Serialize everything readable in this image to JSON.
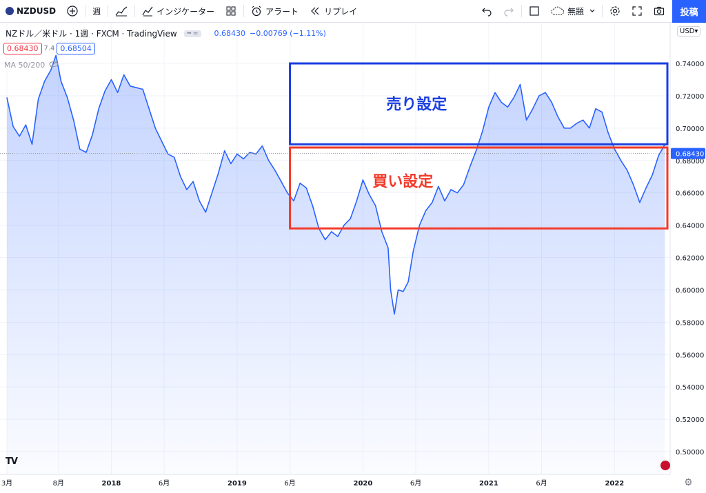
{
  "toolbar": {
    "symbol": "NZDUSD",
    "interval": "週",
    "indicators_label": "インジケーター",
    "alert_label": "アラート",
    "replay_label": "リプレイ",
    "layout_name": "無題",
    "publish_label": "投稿"
  },
  "legend": {
    "title": "NZドル／米ドル · 1週 · FXCM · TradingView",
    "last": "0.68430",
    "change": "−0.00769 (−1.11%)",
    "bid": "0.68430",
    "spread": "7.4",
    "ask": "0.68504",
    "ma_label": "MA 50/200",
    "currency": "USD"
  },
  "colors": {
    "line": "#2962ff",
    "sell_box": "#1a3de0",
    "buy_box": "#f23a2a",
    "price_tag": "#2962ff"
  },
  "chart_data": {
    "type": "area",
    "ylim": [
      0.49,
      0.75
    ],
    "yticks": [
      "0.74000",
      "0.72000",
      "0.70000",
      "0.68000",
      "0.66000",
      "0.64000",
      "0.62000",
      "0.60000",
      "0.58000",
      "0.56000",
      "0.54000",
      "0.52000",
      "0.50000"
    ],
    "ytick_values": [
      0.74,
      0.72,
      0.7,
      0.68,
      0.66,
      0.64,
      0.62,
      0.6,
      0.58,
      0.56,
      0.54,
      0.52,
      0.5
    ],
    "xlim": [
      2017.17,
      2022.42
    ],
    "xticks": [
      {
        "label": "3月",
        "t": 2017.17,
        "bold": false
      },
      {
        "label": "8月",
        "t": 2017.58,
        "bold": false
      },
      {
        "label": "2018",
        "t": 2018.0,
        "bold": true
      },
      {
        "label": "6月",
        "t": 2018.42,
        "bold": false
      },
      {
        "label": "2019",
        "t": 2019.0,
        "bold": true
      },
      {
        "label": "6月",
        "t": 2019.42,
        "bold": false
      },
      {
        "label": "2020",
        "t": 2020.0,
        "bold": true
      },
      {
        "label": "6月",
        "t": 2020.42,
        "bold": false
      },
      {
        "label": "2021",
        "t": 2021.0,
        "bold": true
      },
      {
        "label": "6月",
        "t": 2021.42,
        "bold": false
      },
      {
        "label": "2022",
        "t": 2022.0,
        "bold": true
      }
    ],
    "last_price_label": "0.68430",
    "last_price": 0.6843,
    "series": [
      {
        "x": [
          2017.17,
          2017.22,
          2017.27,
          2017.32,
          2017.37,
          2017.42,
          2017.47,
          2017.52,
          2017.56,
          2017.6,
          2017.65,
          2017.7,
          2017.75,
          2017.8,
          2017.85,
          2017.9,
          2017.95,
          2018.0,
          2018.05,
          2018.1,
          2018.15,
          2018.2,
          2018.25,
          2018.3,
          2018.35,
          2018.4,
          2018.45,
          2018.5,
          2018.55,
          2018.6,
          2018.65,
          2018.7,
          2018.75,
          2018.8,
          2018.85,
          2018.9,
          2018.95,
          2019.0,
          2019.05,
          2019.1,
          2019.15,
          2019.2,
          2019.25,
          2019.3,
          2019.35,
          2019.4,
          2019.45,
          2019.5,
          2019.55,
          2019.6,
          2019.65,
          2019.7,
          2019.75,
          2019.8,
          2019.85,
          2019.9,
          2019.95,
          2020.0,
          2020.05,
          2020.1,
          2020.15,
          2020.2,
          2020.22,
          2020.25,
          2020.28,
          2020.32,
          2020.36,
          2020.4,
          2020.45,
          2020.5,
          2020.55,
          2020.6,
          2020.65,
          2020.7,
          2020.75,
          2020.8,
          2020.85,
          2020.9,
          2020.95,
          2021.0,
          2021.05,
          2021.1,
          2021.15,
          2021.2,
          2021.25,
          2021.3,
          2021.35,
          2021.4,
          2021.45,
          2021.5,
          2021.55,
          2021.6,
          2021.65,
          2021.7,
          2021.75,
          2021.8,
          2021.85,
          2021.9,
          2021.95,
          2022.0,
          2022.05,
          2022.1,
          2022.15,
          2022.2,
          2022.25,
          2022.3,
          2022.35,
          2022.4
        ],
        "values": [
          0.719,
          0.701,
          0.695,
          0.702,
          0.69,
          0.718,
          0.729,
          0.736,
          0.745,
          0.729,
          0.719,
          0.705,
          0.687,
          0.685,
          0.696,
          0.712,
          0.723,
          0.73,
          0.722,
          0.733,
          0.726,
          0.725,
          0.724,
          0.712,
          0.7,
          0.692,
          0.684,
          0.682,
          0.67,
          0.662,
          0.667,
          0.655,
          0.648,
          0.66,
          0.672,
          0.686,
          0.678,
          0.684,
          0.681,
          0.685,
          0.684,
          0.689,
          0.68,
          0.674,
          0.667,
          0.66,
          0.655,
          0.666,
          0.663,
          0.652,
          0.638,
          0.631,
          0.636,
          0.633,
          0.64,
          0.644,
          0.655,
          0.668,
          0.659,
          0.652,
          0.636,
          0.626,
          0.6,
          0.585,
          0.6,
          0.599,
          0.605,
          0.624,
          0.64,
          0.649,
          0.654,
          0.664,
          0.655,
          0.662,
          0.66,
          0.665,
          0.676,
          0.686,
          0.698,
          0.713,
          0.722,
          0.716,
          0.713,
          0.719,
          0.727,
          0.705,
          0.712,
          0.72,
          0.722,
          0.716,
          0.707,
          0.7,
          0.7,
          0.703,
          0.705,
          0.7,
          0.712,
          0.71,
          0.697,
          0.687,
          0.68,
          0.674,
          0.665,
          0.654,
          0.663,
          0.671,
          0.683,
          0.69
        ]
      }
    ]
  },
  "annotations": {
    "sell_label": "売り設定",
    "buy_label": "買い設定",
    "sell_range": [
      0.69,
      0.74
    ],
    "buy_range": [
      0.638,
      0.688
    ],
    "x_range": [
      2019.42,
      2022.42
    ]
  }
}
